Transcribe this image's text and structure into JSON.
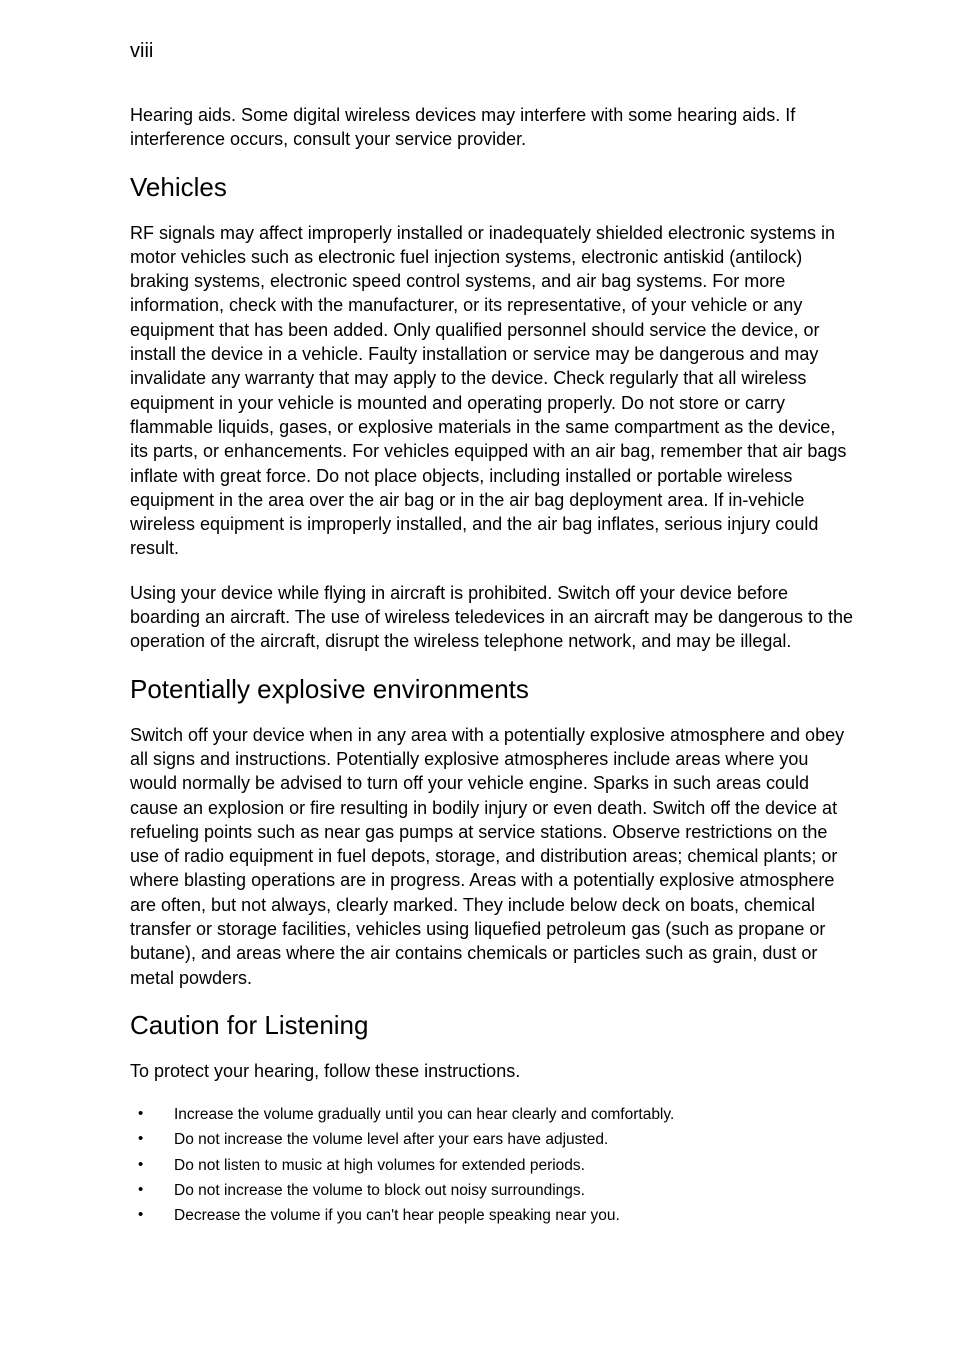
{
  "page_number": "viii",
  "hearing_aids_text": "Hearing aids. Some digital wireless devices may interfere with some hearing aids. If interference occurs, consult your service provider.",
  "vehicles": {
    "heading": "Vehicles",
    "p1": "RF signals may affect improperly installed or inadequately shielded electronic systems in motor vehicles such as electronic fuel injection systems, electronic antiskid (antilock) braking systems, electronic speed control systems, and air bag systems. For more information, check with the manufacturer, or its representative, of your vehicle or any equipment that has been added. Only qualified personnel should service the device, or install the device in a vehicle. Faulty installation or service may be dangerous and may invalidate any warranty that may apply to the device. Check regularly that all wireless equipment in your vehicle is mounted and operating properly. Do not store or carry flammable liquids, gases, or explosive materials in the same compartment as the device, its parts, or enhancements. For vehicles equipped with an air bag, remember that air bags inflate with great force. Do not place objects, including installed or portable wireless equipment in the area over the air bag or in the air bag deployment area. If in-vehicle wireless equipment is improperly installed, and the air bag inflates, serious injury could result.",
    "p2": "Using your device while flying in aircraft is prohibited. Switch off your device before boarding an aircraft. The use of wireless teledevices in an aircraft may be dangerous to the operation of the aircraft, disrupt the wireless telephone network, and may be illegal."
  },
  "explosive": {
    "heading": "Potentially explosive environments",
    "p1": "Switch off your device when in any area with a potentially explosive atmosphere and obey all signs and instructions. Potentially explosive atmospheres include areas where you would normally be advised to turn off your vehicle engine. Sparks in such areas could cause an explosion or fire resulting in bodily injury or even death. Switch off the device at refueling points such as near gas pumps at service stations. Observe restrictions on the use of radio equipment in fuel depots, storage, and distribution areas; chemical plants; or where blasting operations are in progress. Areas with a potentially explosive atmosphere are often, but not always, clearly marked. They include below deck on boats, chemical transfer or storage facilities, vehicles using liquefied petroleum gas (such as propane or butane), and areas where the air contains chemicals or particles such as grain, dust or metal powders."
  },
  "caution": {
    "heading": "Caution for Listening",
    "intro": "To protect your hearing, follow these instructions.",
    "items": [
      "Increase the volume gradually until you can hear clearly and comfortably.",
      "Do not increase the volume level after your ears have adjusted.",
      "Do not listen to music at high volumes for extended periods.",
      "Do not increase the volume to block out noisy surroundings.",
      "Decrease the volume if you can't hear people speaking near you."
    ]
  }
}
